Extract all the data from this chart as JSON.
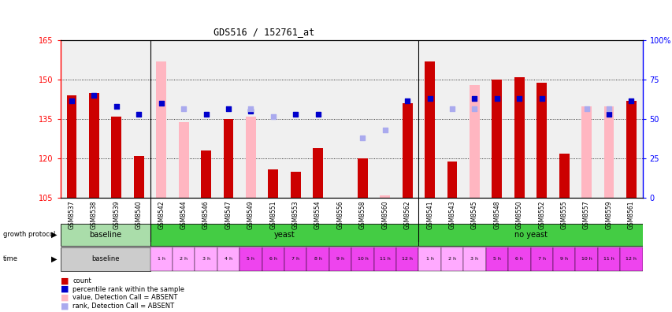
{
  "title": "GDS516 / 152761_at",
  "samples": [
    "GSM8537",
    "GSM8538",
    "GSM8539",
    "GSM8540",
    "GSM8542",
    "GSM8544",
    "GSM8546",
    "GSM8547",
    "GSM8549",
    "GSM8551",
    "GSM8553",
    "GSM8554",
    "GSM8556",
    "GSM8558",
    "GSM8560",
    "GSM8562",
    "GSM8541",
    "GSM8543",
    "GSM8545",
    "GSM8548",
    "GSM8550",
    "GSM8552",
    "GSM8555",
    "GSM8557",
    "GSM8559",
    "GSM8561"
  ],
  "red_bar_height": [
    144,
    145,
    136,
    121,
    null,
    null,
    123,
    135,
    null,
    116,
    115,
    124,
    null,
    120,
    null,
    141,
    157,
    119,
    null,
    150,
    151,
    149,
    122,
    null,
    null,
    142
  ],
  "pink_bar_height": [
    null,
    null,
    null,
    null,
    157,
    134,
    null,
    null,
    136,
    null,
    null,
    null,
    105,
    null,
    106,
    null,
    null,
    null,
    148,
    null,
    null,
    null,
    null,
    140,
    140,
    null
  ],
  "blue_sq_value": [
    142,
    144,
    140,
    137,
    141,
    null,
    137,
    139,
    138,
    null,
    137,
    137,
    null,
    null,
    null,
    142,
    143,
    null,
    143,
    143,
    143,
    143,
    null,
    null,
    137,
    142
  ],
  "lightblue_sq_value": [
    null,
    null,
    null,
    null,
    null,
    139,
    null,
    null,
    139,
    136,
    null,
    null,
    null,
    128,
    131,
    null,
    null,
    139,
    139,
    null,
    null,
    null,
    null,
    139,
    139,
    null
  ],
  "ylim_left": [
    105,
    165
  ],
  "ylim_right": [
    0,
    100
  ],
  "yticks_left": [
    105,
    120,
    135,
    150,
    165
  ],
  "yticks_right": [
    0,
    25,
    50,
    75,
    100
  ],
  "red_color": "#CC0000",
  "pink_color": "#FFB6C1",
  "blue_color": "#0000CC",
  "lightblue_color": "#AAAAEE",
  "baseline_proto_color": "#AADDAA",
  "yeast_proto_color": "#44CC44",
  "noyeast_proto_color": "#44CC44",
  "baseline_time_color": "#CCCCCC",
  "light_purple_color": "#FFAAFF",
  "dark_purple_color": "#EE44EE",
  "gridline_color": "#333333",
  "bg_color": "#F0F0F0"
}
